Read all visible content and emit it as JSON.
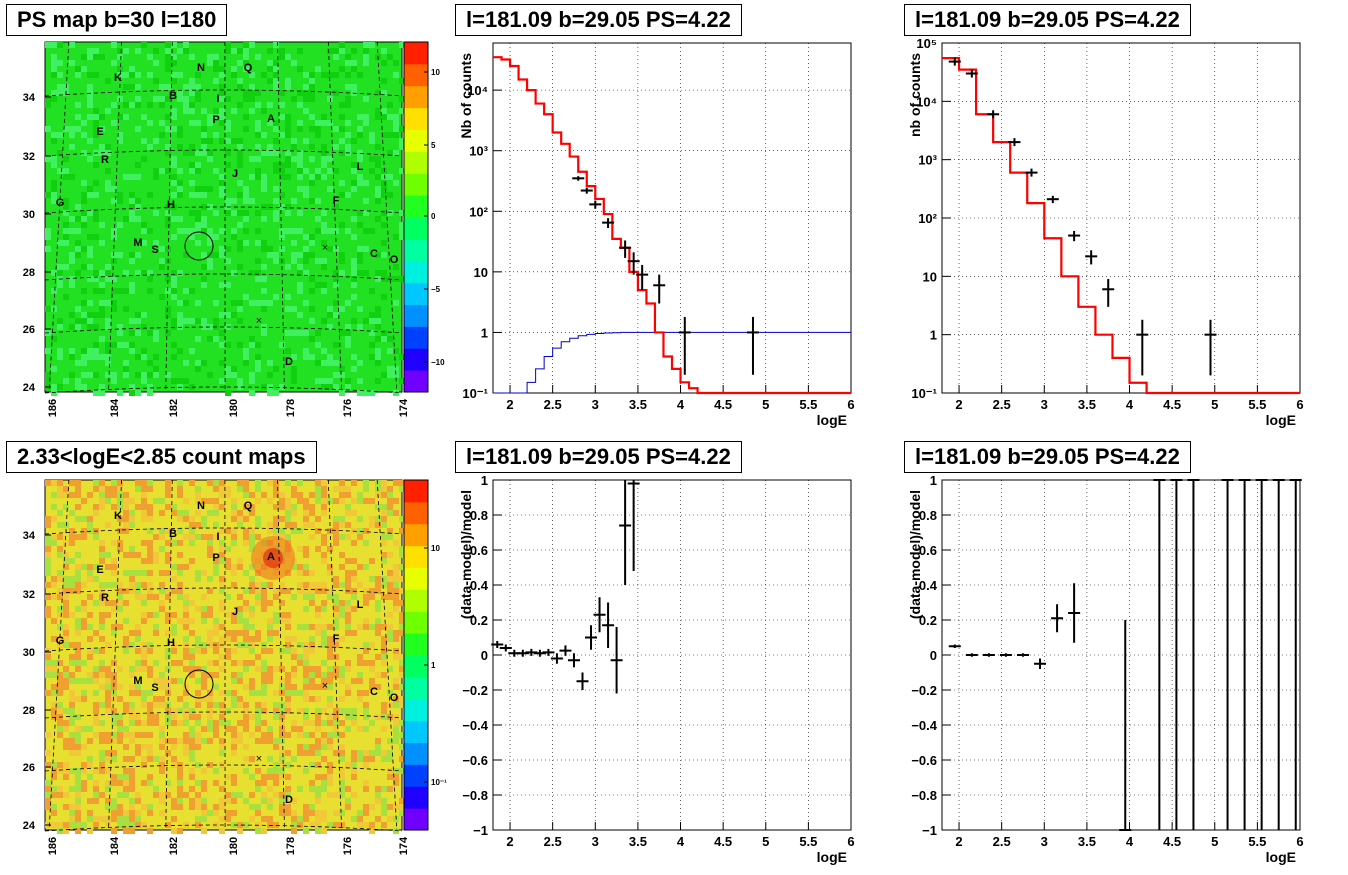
{
  "titles": {
    "top_left": "PS map b=30 l=180",
    "top_mid": "l=181.09 b=29.05 PS=4.22",
    "top_right": "l=181.09 b=29.05 PS=4.22",
    "bot_left": "2.33<logE<2.85 count maps",
    "bot_mid": "l=181.09 b=29.05 PS=4.22",
    "bot_right": "l=181.09 b=29.05 PS=4.22"
  },
  "maps": {
    "y_ticks": [
      "34",
      "32",
      "30",
      "28",
      "26",
      "24"
    ],
    "x_ticks": [
      "186",
      "184",
      "182",
      "180",
      "178",
      "176",
      "174"
    ],
    "sources": [
      {
        "name": "K"
      },
      {
        "name": "N"
      },
      {
        "name": "Q"
      },
      {
        "name": "B"
      },
      {
        "name": "I"
      },
      {
        "name": "P"
      },
      {
        "name": "A"
      },
      {
        "name": "E"
      },
      {
        "name": "R"
      },
      {
        "name": "J"
      },
      {
        "name": "L"
      },
      {
        "name": "G"
      },
      {
        "name": "H"
      },
      {
        "name": "F"
      },
      {
        "name": "M"
      },
      {
        "name": "S"
      },
      {
        "name": "C"
      },
      {
        "name": "O"
      },
      {
        "name": "D"
      }
    ],
    "top_palette_ticks": [
      "10",
      "5",
      "0",
      "−5",
      "−10"
    ],
    "bot_palette_ticks": [
      "10",
      "1",
      "10⁻¹"
    ],
    "top_colors": {
      "background": "#22e022",
      "palette": [
        "#7000ff",
        "#2000ff",
        "#0040ff",
        "#0090ff",
        "#00c8ff",
        "#00f0e0",
        "#00ffa0",
        "#00ff60",
        "#20ff20",
        "#70ff00",
        "#b0ff00",
        "#e8ff00",
        "#ffe000",
        "#ffa000",
        "#ff6000",
        "#ff2000"
      ]
    },
    "bot_colors": {
      "background": "#e8e030",
      "palette": [
        "#7000ff",
        "#2000ff",
        "#0040ff",
        "#0090ff",
        "#00c8ff",
        "#00f0e0",
        "#00ffa0",
        "#00ff60",
        "#20ff20",
        "#70ff00",
        "#b0ff00",
        "#e8ff00",
        "#ffe000",
        "#ffa000",
        "#ff6000",
        "#ff2000"
      ]
    }
  },
  "chart_data": [
    {
      "type": "line",
      "panel": "counts-left",
      "xlabel": "logE",
      "ylabel": "Nb of counts",
      "xlim": [
        1.8,
        6
      ],
      "ylim": [
        0.1,
        60000
      ],
      "yscale": "log",
      "x_ticks": [
        "2",
        "2.5",
        "3",
        "3.5",
        "4",
        "4.5",
        "5",
        "5.5",
        "6"
      ],
      "y_ticks": [
        {
          "v": 0.1,
          "t": "10⁻¹"
        },
        {
          "v": 1,
          "t": "1"
        },
        {
          "v": 10,
          "t": "10"
        },
        {
          "v": 100,
          "t": "10²"
        },
        {
          "v": 1000,
          "t": "10³"
        },
        {
          "v": 10000,
          "t": "10⁴"
        }
      ],
      "model_step": {
        "edges": [
          1.8,
          1.9,
          2.0,
          2.1,
          2.2,
          2.3,
          2.4,
          2.5,
          2.6,
          2.7,
          2.8,
          2.9,
          3.0,
          3.1,
          3.2,
          3.3,
          3.4,
          3.5,
          3.6,
          3.7,
          3.8,
          3.9,
          4.0,
          4.1,
          4.2,
          6.0
        ],
        "values": [
          35000,
          32000,
          25000,
          15000,
          10000,
          6000,
          4000,
          2000,
          1300,
          800,
          450,
          260,
          160,
          90,
          35,
          25,
          10,
          5,
          3,
          1,
          0.4,
          0.25,
          0.15,
          0.12,
          0.1
        ]
      },
      "blue_step": {
        "edges": [
          1.8,
          2.2,
          2.3,
          2.4,
          2.5,
          2.6,
          2.7,
          2.8,
          2.9,
          3.0,
          3.1,
          3.2,
          3.3,
          3.4,
          3.5,
          6.0
        ],
        "values": [
          0.1,
          0.15,
          0.25,
          0.4,
          0.55,
          0.7,
          0.8,
          0.88,
          0.93,
          0.96,
          0.98,
          0.99,
          1.0,
          1.0,
          1.0
        ]
      },
      "points": [
        [
          2.8,
          350
        ],
        [
          2.9,
          220
        ],
        [
          3.0,
          130
        ],
        [
          3.15,
          65
        ],
        [
          3.35,
          25
        ],
        [
          3.45,
          15
        ],
        [
          3.55,
          9
        ],
        [
          3.75,
          6
        ],
        [
          4.05,
          1
        ],
        [
          4.85,
          1
        ]
      ],
      "errors": [
        [
          2.8,
          30
        ],
        [
          2.9,
          25
        ],
        [
          3.0,
          20
        ],
        [
          3.15,
          12
        ],
        [
          3.35,
          8
        ],
        [
          3.45,
          6
        ],
        [
          3.55,
          4
        ],
        [
          3.75,
          3
        ],
        [
          4.05,
          0.8
        ],
        [
          4.85,
          0.8
        ]
      ]
    },
    {
      "type": "line",
      "panel": "counts-right",
      "xlabel": "logE",
      "ylabel": "nb of counts",
      "xlim": [
        1.8,
        6
      ],
      "ylim": [
        0.1,
        100000
      ],
      "yscale": "log",
      "x_ticks": [
        "2",
        "2.5",
        "3",
        "3.5",
        "4",
        "4.5",
        "5",
        "5.5",
        "6"
      ],
      "y_ticks": [
        {
          "v": 0.1,
          "t": "10⁻¹"
        },
        {
          "v": 1,
          "t": "1"
        },
        {
          "v": 10,
          "t": "10"
        },
        {
          "v": 100,
          "t": "10²"
        },
        {
          "v": 1000,
          "t": "10³"
        },
        {
          "v": 10000,
          "t": "10⁴"
        },
        {
          "v": 100000,
          "t": "10⁵"
        }
      ],
      "model_step": {
        "edges": [
          1.8,
          2.0,
          2.2,
          2.4,
          2.6,
          2.8,
          3.0,
          3.2,
          3.4,
          3.6,
          3.8,
          4.0,
          4.2,
          6.0
        ],
        "values": [
          55000,
          35000,
          6000,
          2000,
          600,
          180,
          45,
          10,
          3,
          1,
          0.4,
          0.15,
          0.1
        ]
      },
      "points": [
        [
          1.95,
          48000
        ],
        [
          2.15,
          30000
        ],
        [
          2.4,
          6000
        ],
        [
          2.65,
          2000
        ],
        [
          2.85,
          600
        ],
        [
          3.1,
          210
        ],
        [
          3.35,
          50
        ],
        [
          3.55,
          22
        ],
        [
          3.75,
          6
        ],
        [
          4.15,
          1
        ],
        [
          4.95,
          1
        ]
      ],
      "errors": [
        [
          1.95,
          0
        ],
        [
          2.15,
          0
        ],
        [
          2.4,
          0
        ],
        [
          2.65,
          0
        ],
        [
          2.85,
          0
        ],
        [
          3.1,
          30
        ],
        [
          3.35,
          10
        ],
        [
          3.55,
          6
        ],
        [
          3.75,
          3
        ],
        [
          4.15,
          0.8
        ],
        [
          4.95,
          0.8
        ]
      ]
    },
    {
      "type": "scatter",
      "panel": "residual-left",
      "xlabel": "logE",
      "ylabel": "(data-model)/model",
      "xlim": [
        1.8,
        6
      ],
      "ylim": [
        -1,
        1
      ],
      "x_ticks": [
        "2",
        "2.5",
        "3",
        "3.5",
        "4",
        "4.5",
        "5",
        "5.5",
        "6"
      ],
      "y_ticks": [
        {
          "v": -1,
          "t": "−1"
        },
        {
          "v": -0.8,
          "t": "−0.8"
        },
        {
          "v": -0.6,
          "t": "−0.6"
        },
        {
          "v": -0.4,
          "t": "−0.4"
        },
        {
          "v": -0.2,
          "t": "−0.2"
        },
        {
          "v": 0,
          "t": "0"
        },
        {
          "v": 0.2,
          "t": "0.2"
        },
        {
          "v": 0.4,
          "t": "0.4"
        },
        {
          "v": 0.6,
          "t": "0.6"
        },
        {
          "v": 0.8,
          "t": "0.8"
        },
        {
          "v": 1,
          "t": "1"
        }
      ],
      "points": [
        [
          1.85,
          0.06
        ],
        [
          1.95,
          0.04
        ],
        [
          2.05,
          0.01
        ],
        [
          2.15,
          0.01
        ],
        [
          2.25,
          0.015
        ],
        [
          2.35,
          0.01
        ],
        [
          2.45,
          0.015
        ],
        [
          2.55,
          -0.02
        ],
        [
          2.65,
          0.025
        ],
        [
          2.75,
          -0.03
        ],
        [
          2.85,
          -0.15
        ],
        [
          2.95,
          0.1
        ],
        [
          3.05,
          0.23
        ],
        [
          3.15,
          0.17
        ],
        [
          3.25,
          -0.03
        ],
        [
          3.35,
          0.74
        ],
        [
          3.45,
          0.98
        ]
      ],
      "errors": [
        [
          1.85,
          0.02
        ],
        [
          1.95,
          0.02
        ],
        [
          2.05,
          0.02
        ],
        [
          2.15,
          0.02
        ],
        [
          2.25,
          0.02
        ],
        [
          2.35,
          0.02
        ],
        [
          2.45,
          0.02
        ],
        [
          2.55,
          0.03
        ],
        [
          2.65,
          0.03
        ],
        [
          2.75,
          0.04
        ],
        [
          2.85,
          0.05
        ],
        [
          2.95,
          0.07
        ],
        [
          3.05,
          0.1
        ],
        [
          3.15,
          0.13
        ],
        [
          3.25,
          0.19
        ],
        [
          3.35,
          0.34
        ],
        [
          3.45,
          0.5
        ]
      ]
    },
    {
      "type": "scatter",
      "panel": "residual-right",
      "xlabel": "logE",
      "ylabel": "(data-model)/model",
      "xlim": [
        1.8,
        6
      ],
      "ylim": [
        -1,
        1
      ],
      "x_ticks": [
        "2",
        "2.5",
        "3",
        "3.5",
        "4",
        "4.5",
        "5",
        "5.5",
        "6"
      ],
      "y_ticks": [
        {
          "v": -1,
          "t": "−1"
        },
        {
          "v": -0.8,
          "t": "−0.8"
        },
        {
          "v": -0.6,
          "t": "−0.6"
        },
        {
          "v": -0.4,
          "t": "−0.4"
        },
        {
          "v": -0.2,
          "t": "−0.2"
        },
        {
          "v": 0,
          "t": "0"
        },
        {
          "v": 0.2,
          "t": "0.2"
        },
        {
          "v": 0.4,
          "t": "0.4"
        },
        {
          "v": 0.6,
          "t": "0.6"
        },
        {
          "v": 0.8,
          "t": "0.8"
        },
        {
          "v": 1,
          "t": "1"
        }
      ],
      "points": [
        [
          1.95,
          0.05
        ],
        [
          2.15,
          0.0
        ],
        [
          2.35,
          0.0
        ],
        [
          2.55,
          0.0
        ],
        [
          2.75,
          0.0
        ],
        [
          2.95,
          -0.05
        ],
        [
          3.15,
          0.21
        ],
        [
          3.35,
          0.24
        ],
        [
          3.95,
          -1
        ],
        [
          4.35,
          1
        ],
        [
          4.55,
          1
        ],
        [
          4.75,
          1
        ],
        [
          5.15,
          1
        ],
        [
          5.35,
          1
        ],
        [
          5.55,
          1
        ],
        [
          5.75,
          1
        ],
        [
          5.95,
          1
        ]
      ],
      "errors": [
        [
          1.95,
          0.01
        ],
        [
          2.15,
          0.01
        ],
        [
          2.35,
          0.01
        ],
        [
          2.55,
          0.01
        ],
        [
          2.75,
          0.01
        ],
        [
          2.95,
          0.03
        ],
        [
          3.15,
          0.08
        ],
        [
          3.35,
          0.17
        ],
        [
          3.95,
          1.2
        ],
        [
          4.35,
          2
        ],
        [
          4.55,
          2
        ],
        [
          4.75,
          2
        ],
        [
          5.15,
          2
        ],
        [
          5.35,
          2
        ],
        [
          5.55,
          2
        ],
        [
          5.75,
          2
        ],
        [
          5.95,
          2
        ]
      ]
    }
  ]
}
